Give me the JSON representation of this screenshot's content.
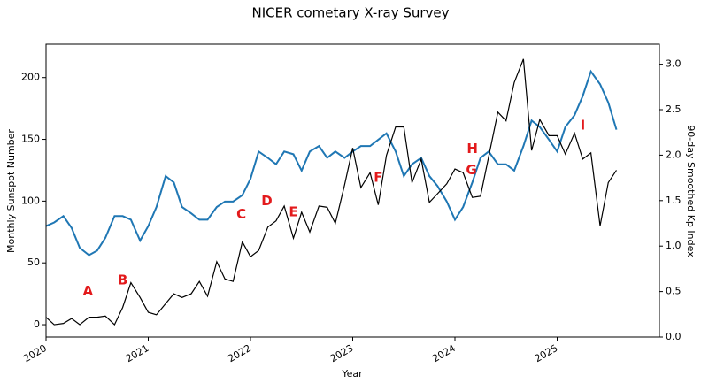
{
  "chart_data": {
    "type": "line",
    "title": "NICER cometary X-ray Survey",
    "xlabel": "Year",
    "ylabel": "Monthly Sunspot Number",
    "y2label": "90-day Smoothed Kp Index",
    "x": [
      2020.0,
      2020.08,
      2020.17,
      2020.25,
      2020.33,
      2020.42,
      2020.5,
      2020.58,
      2020.67,
      2020.75,
      2020.83,
      2020.92,
      2021.0,
      2021.08,
      2021.17,
      2021.25,
      2021.33,
      2021.42,
      2021.5,
      2021.58,
      2021.67,
      2021.75,
      2021.83,
      2021.92,
      2022.0,
      2022.08,
      2022.17,
      2022.25,
      2022.33,
      2022.42,
      2022.5,
      2022.58,
      2022.67,
      2022.75,
      2022.83,
      2022.92,
      2023.0,
      2023.08,
      2023.17,
      2023.25,
      2023.33,
      2023.42,
      2023.5,
      2023.58,
      2023.67,
      2023.75,
      2023.83,
      2023.92,
      2024.0,
      2024.08,
      2024.17,
      2024.25,
      2024.33,
      2024.42,
      2024.5,
      2024.58,
      2024.67,
      2024.75,
      2024.83,
      2024.92,
      2025.0,
      2025.08,
      2025.17,
      2025.25,
      2025.33,
      2025.42,
      2025.5,
      2025.58
    ],
    "series": [
      {
        "name": "Monthly Sunspot Number",
        "color": "#000000",
        "axis": "y",
        "values": [
          6,
          0,
          1,
          5,
          0,
          6,
          6,
          7,
          0,
          14,
          34,
          22,
          10,
          8,
          17,
          25,
          22,
          25,
          35,
          23,
          51,
          37,
          35,
          67,
          55,
          60,
          79,
          84,
          96,
          70,
          91,
          75,
          96,
          95,
          82,
          113,
          143,
          111,
          123,
          97,
          137,
          160,
          160,
          115,
          134,
          99,
          106,
          114,
          126,
          123,
          103,
          104,
          136,
          172,
          165,
          196,
          215,
          141,
          166,
          153,
          153,
          138,
          155,
          134,
          139,
          80,
          115,
          125
        ]
      },
      {
        "name": "90-day Smoothed Kp Index",
        "color": "#1f77b4",
        "axis": "y2",
        "values": [
          1.22,
          1.26,
          1.33,
          1.2,
          0.98,
          0.9,
          0.95,
          1.09,
          1.33,
          1.33,
          1.29,
          1.06,
          1.22,
          1.43,
          1.77,
          1.7,
          1.43,
          1.36,
          1.29,
          1.29,
          1.43,
          1.49,
          1.49,
          1.56,
          1.74,
          2.04,
          1.97,
          1.9,
          2.04,
          2.01,
          1.83,
          2.04,
          2.1,
          1.97,
          2.04,
          1.97,
          2.04,
          2.1,
          2.1,
          2.17,
          2.24,
          2.04,
          1.77,
          1.9,
          1.97,
          1.77,
          1.66,
          1.49,
          1.29,
          1.43,
          1.7,
          1.97,
          2.04,
          1.9,
          1.9,
          1.83,
          2.1,
          2.38,
          2.31,
          2.17,
          2.04,
          2.31,
          2.44,
          2.65,
          2.92,
          2.78,
          2.58,
          2.28
        ]
      }
    ],
    "annotations": [
      {
        "text": "A",
        "x": 2020.41,
        "y": 27
      },
      {
        "text": "B",
        "x": 2020.75,
        "y": 36
      },
      {
        "text": "C",
        "x": 2021.91,
        "y": 89
      },
      {
        "text": "D",
        "x": 2022.16,
        "y": 100
      },
      {
        "text": "E",
        "x": 2022.42,
        "y": 91
      },
      {
        "text": "F",
        "x": 2023.25,
        "y": 119
      },
      {
        "text": "G",
        "x": 2024.16,
        "y": 125
      },
      {
        "text": "H",
        "x": 2024.17,
        "y": 142
      },
      {
        "text": "I",
        "x": 2025.25,
        "y": 161
      }
    ],
    "annotation_color": "#e31a1c",
    "xlim": [
      2020,
      2026
    ],
    "xticks": [
      2020,
      2021,
      2022,
      2023,
      2024,
      2025
    ],
    "ylim": [
      -10,
      227
    ],
    "yticks": [
      0,
      50,
      100,
      150,
      200
    ],
    "y2lim": [
      0,
      3.22
    ],
    "y2ticks": [
      {
        "value": 0,
        "label": "0.0"
      },
      0.5,
      {
        "value": 1,
        "label": "1.0"
      },
      1.5,
      {
        "value": 2,
        "label": "2.0"
      },
      2.5,
      {
        "value": 3,
        "label": "3.0"
      }
    ],
    "grid": false
  }
}
